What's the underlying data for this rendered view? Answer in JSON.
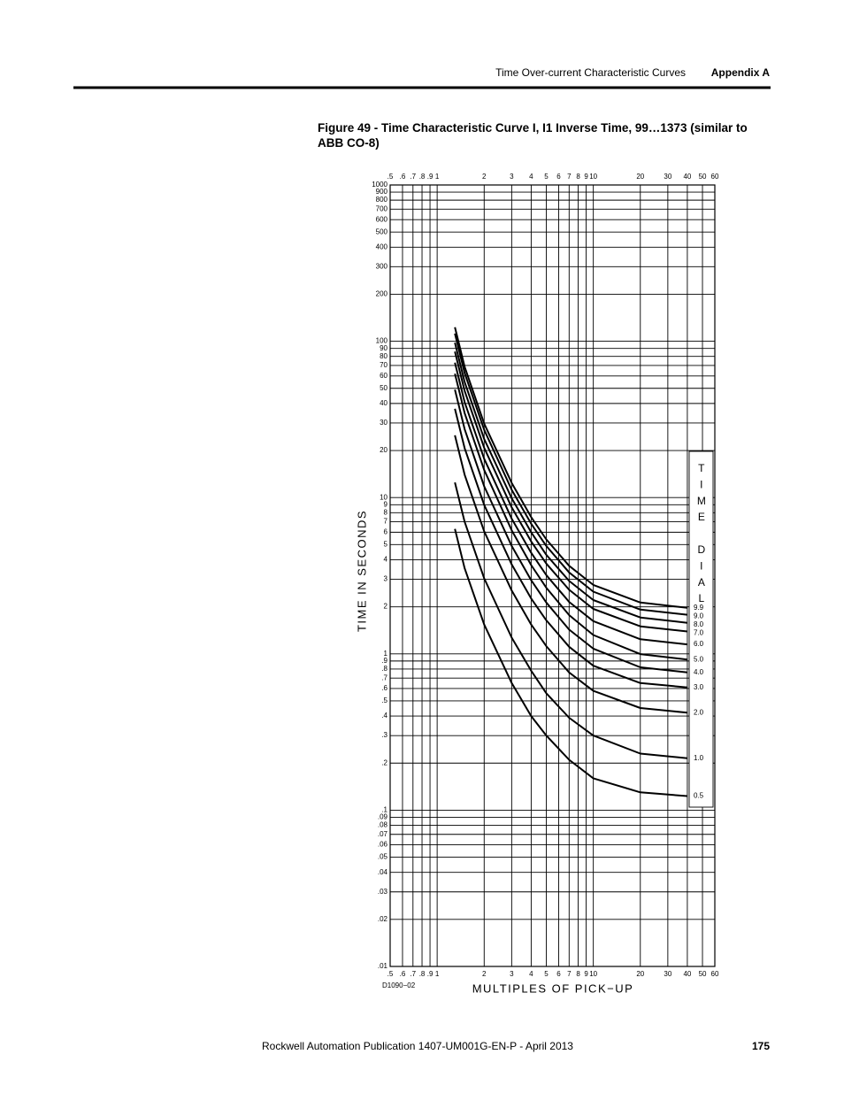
{
  "header": {
    "section": "Time Over-current Characteristic Curves",
    "appendix": "Appendix A"
  },
  "figure": {
    "caption": "Figure 49 - Time Characteristic Curve I, I1 Inverse Time, 99…1373 (similar to ABB CO-8)",
    "code": "D1090−02"
  },
  "chart_data": {
    "type": "line",
    "xscale": "log",
    "yscale": "log",
    "grid": true,
    "xlabel": "MULTIPLES OF PICK−UP",
    "ylabel": "TIME IN SECONDS",
    "legend_title": "TIME DIAL",
    "xlim": [
      0.5,
      60
    ],
    "ylim": [
      0.01,
      1000
    ],
    "xticks": [
      {
        "value": 0.5,
        "label": ".5"
      },
      {
        "value": 0.6,
        "label": ".6"
      },
      {
        "value": 0.7,
        "label": ".7"
      },
      {
        "value": 0.8,
        "label": ".8"
      },
      {
        "value": 0.9,
        "label": ".9"
      },
      1,
      2,
      3,
      4,
      5,
      6,
      7,
      8,
      9,
      10,
      20,
      30,
      40,
      50,
      60
    ],
    "yticks": [
      1000,
      900,
      800,
      700,
      600,
      500,
      400,
      300,
      200,
      100,
      90,
      80,
      70,
      60,
      50,
      40,
      30,
      20,
      10,
      9,
      8,
      7,
      6,
      5,
      4,
      3,
      2,
      1,
      {
        "value": 0.9,
        "label": ".9"
      },
      {
        "value": 0.8,
        "label": ".8"
      },
      {
        "value": 0.7,
        "label": ".7"
      },
      {
        "value": 0.6,
        "label": ".6"
      },
      {
        "value": 0.5,
        "label": ".5"
      },
      {
        "value": 0.4,
        "label": ".4"
      },
      {
        "value": 0.3,
        "label": ".3"
      },
      {
        "value": 0.2,
        "label": ".2"
      },
      {
        "value": 0.1,
        "label": ".1"
      },
      {
        "value": 0.09,
        "label": ".09"
      },
      {
        "value": 0.08,
        "label": ".08"
      },
      {
        "value": 0.07,
        "label": ".07"
      },
      {
        "value": 0.06,
        "label": ".06"
      },
      {
        "value": 0.05,
        "label": ".05"
      },
      {
        "value": 0.04,
        "label": ".04"
      },
      {
        "value": 0.03,
        "label": ".03"
      },
      {
        "value": 0.02,
        "label": ".02"
      },
      {
        "value": 0.01,
        "label": ".01"
      }
    ],
    "x": [
      1.3,
      1.5,
      2,
      3,
      4,
      5,
      7,
      10,
      20,
      40
    ],
    "series": [
      {
        "name": "9.9",
        "color": "#000000",
        "values": [
          123,
          68.7,
          29.7,
          12.4,
          7.5,
          5.4,
          3.66,
          2.76,
          2.13,
          1.97
        ]
      },
      {
        "name": "9.0",
        "color": "#000000",
        "values": [
          112,
          62.6,
          27.1,
          11.2,
          6.8,
          4.9,
          3.32,
          2.5,
          1.92,
          1.78
        ]
      },
      {
        "name": "8.0",
        "color": "#000000",
        "values": [
          98,
          54.8,
          23.7,
          9.9,
          6.0,
          4.3,
          2.93,
          2.21,
          1.71,
          1.58
        ]
      },
      {
        "name": "7.0",
        "color": "#000000",
        "values": [
          86,
          48.1,
          20.8,
          8.65,
          5.24,
          3.78,
          2.57,
          1.94,
          1.5,
          1.39
        ]
      },
      {
        "name": "6.0",
        "color": "#000000",
        "values": [
          73,
          40.8,
          17.7,
          7.32,
          4.43,
          3.19,
          2.15,
          1.62,
          1.24,
          1.15
        ]
      },
      {
        "name": "5.0",
        "color": "#000000",
        "values": [
          62,
          34.7,
          15.0,
          6.17,
          3.7,
          2.65,
          1.77,
          1.32,
          0.996,
          0.92
        ]
      },
      {
        "name": "4.0",
        "color": "#000000",
        "values": [
          49,
          27.4,
          11.8,
          4.9,
          2.96,
          2.13,
          1.43,
          1.08,
          0.82,
          0.76
        ]
      },
      {
        "name": "3.0",
        "color": "#000000",
        "values": [
          37,
          20.7,
          8.96,
          3.73,
          2.26,
          1.64,
          1.11,
          0.84,
          0.65,
          0.61
        ]
      },
      {
        "name": "2.0",
        "color": "#000000",
        "values": [
          25,
          14.0,
          6.08,
          2.54,
          1.54,
          1.12,
          0.76,
          0.58,
          0.45,
          0.42
        ]
      },
      {
        "name": "1.0",
        "color": "#000000",
        "values": [
          12.5,
          7.0,
          3.04,
          1.27,
          0.78,
          0.56,
          0.39,
          0.3,
          0.23,
          0.215
        ]
      },
      {
        "name": "0.5",
        "color": "#000000",
        "values": [
          6.3,
          3.53,
          1.54,
          0.65,
          0.4,
          0.3,
          0.21,
          0.16,
          0.13,
          0.123
        ]
      }
    ]
  },
  "footer": {
    "publication": "Rockwell Automation Publication 1407-UM001G-EN-P - April 2013",
    "page": "175"
  }
}
